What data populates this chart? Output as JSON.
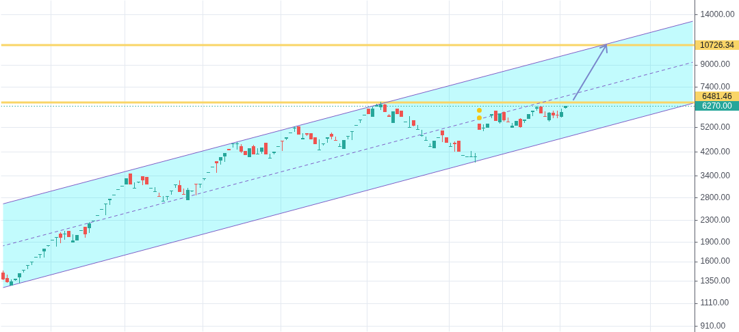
{
  "chart_data": {
    "type": "candlestick",
    "log": true,
    "grid": true,
    "tick_labels": "y",
    "marker": "none",
    "ylim": [
      866,
      15880
    ],
    "yticks": [
      {
        "value": 910,
        "label": "910.00"
      },
      {
        "value": 1110,
        "label": "1110.00"
      },
      {
        "value": 1350,
        "label": "1350.00"
      },
      {
        "value": 1600,
        "label": "1600.00"
      },
      {
        "value": 1900,
        "label": "1900.00"
      },
      {
        "value": 2300,
        "label": "2300.00"
      },
      {
        "value": 2800,
        "label": "2800.00"
      },
      {
        "value": 3400,
        "label": "3400.00"
      },
      {
        "value": 4200,
        "label": "4200.00"
      },
      {
        "value": 5200,
        "label": "5200.00"
      },
      {
        "value": 7400,
        "label": "7400.00"
      },
      {
        "value": 9000,
        "label": "9000.00"
      },
      {
        "value": 14000,
        "label": "14000.00"
      }
    ],
    "categories": [
      null,
      null,
      null,
      null,
      null,
      null,
      null,
      null,
      null,
      null,
      null,
      null,
      null,
      null,
      null,
      null,
      null,
      null,
      null,
      null,
      null,
      null,
      null,
      null,
      null,
      null,
      null,
      null,
      null,
      null,
      null,
      null,
      null,
      null,
      null,
      null,
      null,
      null,
      null,
      null,
      null,
      null,
      null,
      null,
      null,
      null,
      null,
      null,
      null,
      null,
      null,
      null,
      null,
      null,
      null,
      null,
      null,
      null,
      null,
      null,
      null,
      null,
      null,
      null,
      null,
      null,
      null,
      null,
      null,
      null,
      null,
      null,
      null,
      null,
      null,
      null,
      null,
      null,
      null,
      null,
      null,
      null,
      null,
      null,
      null,
      null,
      null,
      null,
      null,
      null,
      null,
      null,
      null,
      null,
      null,
      null,
      null,
      null,
      null,
      null,
      null,
      null,
      null,
      null,
      null,
      null,
      null,
      null,
      null,
      null,
      null,
      null,
      null,
      null,
      null,
      null,
      null,
      null,
      null,
      null,
      null,
      null,
      null,
      null,
      null,
      null,
      null,
      null,
      null,
      null,
      null,
      null,
      null,
      null,
      null,
      null,
      null,
      null,
      null,
      null,
      null,
      null,
      null,
      null,
      null,
      null,
      null,
      null,
      null,
      null,
      null,
      null,
      null,
      null,
      null,
      null,
      null,
      null,
      null,
      null,
      null,
      null,
      null,
      null,
      null,
      null,
      null,
      null,
      null
    ],
    "ohlc": [
      [
        1455,
        1485,
        1365,
        1370
      ],
      [
        1390,
        1430,
        1335,
        1340
      ],
      [
        1295,
        1370,
        1295,
        1345
      ],
      [
        1365,
        1380,
        1360,
        1380
      ],
      [
        1395,
        1445,
        1320,
        1445
      ],
      [
        1485,
        1490,
        1455,
        1490
      ],
      [
        1550,
        1555,
        1500,
        1555
      ],
      [
        1595,
        1605,
        1560,
        1605
      ],
      [
        1665,
        1670,
        1665,
        1670
      ],
      [
        1710,
        1715,
        1660,
        1715
      ],
      [
        1750,
        1795,
        1655,
        1795
      ],
      [
        1840,
        1850,
        1830,
        1850
      ],
      [
        1935,
        1945,
        1935,
        1945
      ],
      [
        1980,
        1990,
        1835,
        1990
      ],
      [
        2045,
        2065,
        1890,
        1980
      ],
      [
        2035,
        2095,
        1945,
        2045
      ],
      [
        2100,
        2100,
        1985,
        1985
      ],
      [
        1890,
        2035,
        1890,
        1930
      ],
      [
        1925,
        2025,
        1925,
        2025
      ],
      [
        2105,
        2110,
        2105,
        2110
      ],
      [
        2175,
        2175,
        1980,
        2040
      ],
      [
        2155,
        2265,
        2065,
        2240
      ],
      [
        2280,
        2295,
        2280,
        2290
      ],
      [
        2400,
        2405,
        2400,
        2405
      ],
      [
        2525,
        2535,
        2525,
        2535
      ],
      [
        2655,
        2665,
        2415,
        2665
      ],
      [
        2745,
        2780,
        2625,
        2780
      ],
      [
        2875,
        2885,
        2875,
        2885
      ],
      [
        3010,
        3020,
        3010,
        3020
      ],
      [
        3105,
        3115,
        3105,
        3115
      ],
      [
        3160,
        3330,
        3160,
        3330
      ],
      [
        3475,
        3475,
        3150,
        3150
      ],
      [
        3055,
        3215,
        3055,
        3060
      ],
      [
        3215,
        3240,
        3195,
        3240
      ],
      [
        3390,
        3390,
        3130,
        3265
      ],
      [
        3370,
        3370,
        3160,
        3160
      ],
      [
        3055,
        3060,
        3055,
        3060
      ],
      [
        2970,
        3080,
        2970,
        2975
      ],
      [
        2850,
        2935,
        2840,
        2840
      ],
      [
        2710,
        2845,
        2710,
        2730
      ],
      [
        2835,
        2845,
        2745,
        2845
      ],
      [
        2975,
        2985,
        2890,
        2985
      ],
      [
        3130,
        3145,
        3050,
        3145
      ],
      [
        3140,
        3270,
        2960,
        2960
      ],
      [
        2900,
        3045,
        2895,
        2895
      ],
      [
        2755,
        3060,
        2755,
        3005
      ],
      [
        2990,
        2995,
        2970,
        2995
      ],
      [
        3165,
        3165,
        2855,
        3150
      ],
      [
        3160,
        3180,
        3075,
        3180
      ],
      [
        3325,
        3335,
        3285,
        3335
      ],
      [
        3500,
        3510,
        3500,
        3510
      ],
      [
        3670,
        3680,
        3670,
        3680
      ],
      [
        3865,
        3865,
        3500,
        3805
      ],
      [
        3890,
        4010,
        3760,
        4010
      ],
      [
        4035,
        4155,
        3850,
        4155
      ],
      [
        4305,
        4305,
        4265,
        4265
      ],
      [
        4510,
        4520,
        4365,
        4520
      ],
      [
        4505,
        4565,
        4295,
        4515
      ],
      [
        4410,
        4490,
        4145,
        4205
      ],
      [
        4230,
        4230,
        4090,
        4090
      ],
      [
        4015,
        4325,
        4015,
        4325
      ],
      [
        4410,
        4455,
        4115,
        4115
      ],
      [
        4120,
        4325,
        4120,
        4125
      ],
      [
        4205,
        4360,
        4130,
        4360
      ],
      [
        4545,
        4545,
        4115,
        4115
      ],
      [
        3990,
        4130,
        3990,
        3995
      ],
      [
        4145,
        4205,
        4095,
        4205
      ],
      [
        4405,
        4415,
        4400,
        4415
      ],
      [
        4630,
        4630,
        4255,
        4615
      ],
      [
        4710,
        4765,
        4645,
        4765
      ],
      [
        4965,
        4975,
        4965,
        4975
      ],
      [
        5165,
        5240,
        5015,
        5175
      ],
      [
        5245,
        5245,
        4875,
        4875
      ],
      [
        4675,
        4940,
        4675,
        4730
      ],
      [
        4940,
        4940,
        4835,
        4890
      ],
      [
        4940,
        4940,
        4675,
        4675
      ],
      [
        4765,
        4765,
        4500,
        4500
      ],
      [
        4285,
        4685,
        4285,
        4290
      ],
      [
        4510,
        4520,
        4445,
        4520
      ],
      [
        4720,
        4765,
        4555,
        4765
      ],
      [
        4915,
        4980,
        4690,
        4810
      ],
      [
        4660,
        4795,
        4655,
        4655
      ],
      [
        4405,
        4520,
        4405,
        4410
      ],
      [
        4315,
        4655,
        4315,
        4655
      ],
      [
        4810,
        4820,
        4690,
        4820
      ],
      [
        5040,
        5050,
        4690,
        5050
      ],
      [
        5280,
        5300,
        5280,
        5300
      ],
      [
        5550,
        5560,
        5405,
        5560
      ],
      [
        5800,
        5810,
        5800,
        5810
      ],
      [
        6130,
        6130,
        5840,
        5845
      ],
      [
        5715,
        6245,
        5715,
        6120
      ],
      [
        6245,
        6380,
        6245,
        6315
      ],
      [
        6215,
        6535,
        6070,
        6380
      ],
      [
        6345,
        6365,
        5960,
        5960
      ],
      [
        5775,
        5835,
        5695,
        5695
      ],
      [
        5415,
        5995,
        5415,
        5995
      ],
      [
        6130,
        6130,
        5855,
        5855
      ],
      [
        6020,
        6020,
        5715,
        5715
      ],
      [
        5455,
        5465,
        5455,
        5465
      ],
      [
        5210,
        5740,
        5210,
        5215
      ],
      [
        5540,
        5540,
        5255,
        5290
      ],
      [
        5115,
        5300,
        5115,
        5125
      ],
      [
        4860,
        5115,
        4845,
        4865
      ],
      [
        4640,
        4795,
        4640,
        4645
      ],
      [
        4405,
        4520,
        4405,
        4410
      ],
      [
        4340,
        4625,
        4340,
        4625
      ],
      [
        4770,
        4780,
        4770,
        4780
      ],
      [
        5060,
        5060,
        4580,
        4865
      ],
      [
        4765,
        4765,
        4535,
        4535
      ],
      [
        4405,
        4555,
        4405,
        4410
      ],
      [
        4545,
        4610,
        4215,
        4490
      ],
      [
        4625,
        4625,
        4215,
        4215
      ],
      [
        4070,
        4075,
        4070,
        4075
      ],
      [
        4030,
        4035,
        4030,
        4035
      ],
      [
        4035,
        4230,
        4035,
        4040
      ],
      [
        4035,
        4170,
        3850,
        4040
      ],
      [
        5375,
        5375,
        5090,
        5090
      ],
      [
        5165,
        5320,
        5040,
        5175
      ],
      [
        5195,
        5375,
        5195,
        5375
      ],
      [
        5795,
        5855,
        5650,
        5855
      ],
      [
        6020,
        6020,
        5505,
        5505
      ],
      [
        5440,
        5880,
        5375,
        5880
      ],
      [
        5950,
        5975,
        5480,
        5540
      ],
      [
        5465,
        5650,
        5455,
        5455
      ],
      [
        5195,
        5405,
        5195,
        5280
      ],
      [
        5280,
        5515,
        5280,
        5515
      ],
      [
        5615,
        5650,
        5195,
        5215
      ],
      [
        5495,
        5570,
        5385,
        5570
      ],
      [
        5615,
        5845,
        5615,
        5845
      ],
      [
        5940,
        6010,
        5740,
        6010
      ],
      [
        6155,
        6255,
        6035,
        6195
      ],
      [
        6255,
        6255,
        5890,
        5890
      ],
      [
        5730,
        5960,
        5695,
        5695
      ],
      [
        5540,
        5975,
        5480,
        5925
      ],
      [
        5915,
        6020,
        5650,
        5795
      ],
      [
        5810,
        6020,
        5650,
        5790
      ],
      [
        5705,
        6130,
        5685,
        5950
      ],
      [
        6180,
        6280,
        6145,
        6270
      ],
      null,
      null,
      null,
      null,
      null,
      null,
      null,
      null,
      null,
      null,
      null,
      null,
      null,
      null,
      null,
      null,
      null,
      null,
      null,
      null,
      null,
      null,
      null,
      null,
      null,
      null,
      null,
      null,
      null,
      null,
      null
    ],
    "colors": [
      "#ef5350",
      "#ef5350",
      "#26a69a",
      "#26a69a",
      "#26a69a",
      "#26a69a",
      "#26a69a",
      "#26a69a",
      "#26a69a",
      "#26a69a",
      "#26a69a",
      "#26a69a",
      "#26a69a",
      "#26a69a",
      "#ef5350",
      "#26a69a",
      "#ef5350",
      "#26a69a",
      "#26a69a",
      "#26a69a",
      "#ef5350",
      "#26a69a",
      "#26a69a",
      "#26a69a",
      "#26a69a",
      "#26a69a",
      "#26a69a",
      "#26a69a",
      "#26a69a",
      "#26a69a",
      "#26a69a",
      "#ef5350",
      "#26a69a",
      "#26a69a",
      "#ef5350",
      "#ef5350",
      "#26a69a",
      "#26a69a",
      "#ef5350",
      "#26a69a",
      "#26a69a",
      "#26a69a",
      "#26a69a",
      "#ef5350",
      "#ef5350",
      "#26a69a",
      "#26a69a",
      "#ef5350",
      "#26a69a",
      "#26a69a",
      "#26a69a",
      "#26a69a",
      "#ef5350",
      "#26a69a",
      "#26a69a",
      "#ef5350",
      "#26a69a",
      "#26a69a",
      "#ef5350",
      "#ef5350",
      "#26a69a",
      "#ef5350",
      "#26a69a",
      "#26a69a",
      "#ef5350",
      "#26a69a",
      "#26a69a",
      "#26a69a",
      "#ef5350",
      "#26a69a",
      "#26a69a",
      "#26a69a",
      "#ef5350",
      "#26a69a",
      "#ef5350",
      "#ef5350",
      "#ef5350",
      "#26a69a",
      "#26a69a",
      "#26a69a",
      "#ef5350",
      "#ef5350",
      "#26a69a",
      "#26a69a",
      "#26a69a",
      "#26a69a",
      "#26a69a",
      "#26a69a",
      "#26a69a",
      "#ef5350",
      "#26a69a",
      "#26a69a",
      "#26a69a",
      "#ef5350",
      "#ef5350",
      "#26a69a",
      "#ef5350",
      "#ef5350",
      "#26a69a",
      "#26a69a",
      "#ef5350",
      "#26a69a",
      "#26a69a",
      "#26a69a",
      "#26a69a",
      "#26a69a",
      "#26a69a",
      "#ef5350",
      "#ef5350",
      "#26a69a",
      "#ef5350",
      "#ef5350",
      "#26a69a",
      "#26a69a",
      "#26a69a",
      "#26a69a",
      "#ef5350",
      "#26a69a",
      "#26a69a",
      "#26a69a",
      "#ef5350",
      "#26a69a",
      "#ef5350",
      "#ef5350",
      "#26a69a",
      "#26a69a",
      "#ef5350",
      "#26a69a",
      "#26a69a",
      "#26a69a",
      "#26a69a",
      "#ef5350",
      "#ef5350",
      "#26a69a",
      "#ef5350",
      "#ef5350",
      "#26a69a",
      "#26a69a",
      null,
      null,
      null,
      null,
      null,
      null,
      null,
      null,
      null,
      null,
      null,
      null,
      null,
      null,
      null,
      null,
      null,
      null,
      null,
      null,
      null,
      null,
      null,
      null,
      null,
      null,
      null,
      null,
      null,
      null,
      null
    ],
    "series": [
      {
        "type": "line",
        "color": "#7e5ec6",
        "values": [
          2660,
          null,
          null,
          null,
          null,
          null,
          null,
          null,
          null,
          null,
          null,
          null,
          null,
          null,
          null,
          null,
          null,
          null,
          null,
          null,
          null,
          null,
          null,
          null,
          null,
          null,
          null,
          null,
          null,
          null,
          null,
          null,
          null,
          null,
          null,
          null,
          null,
          null,
          null,
          null,
          null,
          null,
          null,
          null,
          null,
          null,
          null,
          null,
          null,
          null,
          null,
          null,
          null,
          null,
          null,
          null,
          null,
          null,
          null,
          null,
          null,
          null,
          null,
          null,
          null,
          null,
          null,
          null,
          null,
          null,
          null,
          null,
          null,
          null,
          null,
          null,
          null,
          null,
          null,
          null,
          null,
          null,
          null,
          null,
          null,
          null,
          null,
          null,
          null,
          null,
          null,
          null,
          null,
          null,
          null,
          null,
          null,
          null,
          null,
          null,
          null,
          null,
          null,
          null,
          null,
          null,
          null,
          null,
          null,
          null,
          null,
          null,
          null,
          null,
          null,
          null,
          null,
          null,
          null,
          null,
          null,
          null,
          null,
          null,
          null,
          null,
          null,
          null,
          null,
          null,
          null,
          null,
          null,
          null,
          null,
          null,
          null,
          null,
          null,
          null,
          null,
          null,
          null,
          null,
          null,
          null,
          null,
          null,
          null,
          null,
          null,
          null,
          null,
          null,
          null,
          null,
          null,
          null,
          null,
          null,
          null,
          null,
          null,
          null,
          null,
          null,
          null,
          null,
          13220
        ]
      },
      {
        "type": "line",
        "color": "#7e5ec6",
        "line_style": "dashed",
        "values": [
          1840,
          null,
          null,
          null,
          null,
          null,
          null,
          null,
          null,
          null,
          null,
          null,
          null,
          null,
          null,
          null,
          null,
          null,
          null,
          null,
          null,
          null,
          null,
          null,
          null,
          null,
          null,
          null,
          null,
          null,
          null,
          null,
          null,
          null,
          null,
          null,
          null,
          null,
          null,
          null,
          null,
          null,
          null,
          null,
          null,
          null,
          null,
          null,
          null,
          null,
          null,
          null,
          null,
          null,
          null,
          null,
          null,
          null,
          null,
          null,
          null,
          null,
          null,
          null,
          null,
          null,
          null,
          null,
          null,
          null,
          null,
          null,
          null,
          null,
          null,
          null,
          null,
          null,
          null,
          null,
          null,
          null,
          null,
          null,
          null,
          null,
          null,
          null,
          null,
          null,
          null,
          null,
          null,
          null,
          null,
          null,
          null,
          null,
          null,
          null,
          null,
          null,
          null,
          null,
          null,
          null,
          null,
          null,
          null,
          null,
          null,
          null,
          null,
          null,
          null,
          null,
          null,
          null,
          null,
          null,
          null,
          null,
          null,
          null,
          null,
          null,
          null,
          null,
          null,
          null,
          null,
          null,
          null,
          null,
          null,
          null,
          null,
          null,
          null,
          null,
          null,
          null,
          null,
          null,
          null,
          null,
          null,
          null,
          null,
          null,
          null,
          null,
          null,
          null,
          null,
          null,
          null,
          null,
          null,
          null,
          null,
          null,
          null,
          null,
          null,
          null,
          null,
          null,
          9220
        ],
        "lower": [
          1275,
          null,
          null,
          null,
          null,
          null,
          null,
          null,
          null,
          null,
          null,
          null,
          null,
          null,
          null,
          null,
          null,
          null,
          null,
          null,
          null,
          null,
          null,
          null,
          null,
          null,
          null,
          null,
          null,
          null,
          null,
          null,
          null,
          null,
          null,
          null,
          null,
          null,
          null,
          null,
          null,
          null,
          null,
          null,
          null,
          null,
          null,
          null,
          null,
          null,
          null,
          null,
          null,
          null,
          null,
          null,
          null,
          null,
          null,
          null,
          null,
          null,
          null,
          null,
          null,
          null,
          null,
          null,
          null,
          null,
          null,
          null,
          null,
          null,
          null,
          null,
          null,
          null,
          null,
          null,
          null,
          null,
          null,
          null,
          null,
          null,
          null,
          null,
          null,
          null,
          null,
          null,
          null,
          null,
          null,
          null,
          null,
          null,
          null,
          null,
          null,
          null,
          null,
          null,
          null,
          null,
          null,
          null,
          null,
          null,
          null,
          null,
          null,
          null,
          null,
          null,
          null,
          null,
          null,
          null,
          null,
          null,
          null,
          null,
          null,
          null,
          null,
          null,
          null,
          null,
          null,
          null,
          null,
          null,
          null,
          null,
          null,
          null,
          null,
          null,
          null,
          null,
          null,
          null,
          null,
          null,
          null,
          null,
          null,
          null,
          null,
          null,
          null,
          null,
          null,
          null,
          null,
          null,
          null,
          null,
          null,
          null,
          null,
          null,
          null,
          null,
          null,
          null,
          6430
        ],
        "upper": [
          2660,
          null,
          null,
          null,
          null,
          null,
          null,
          null,
          null,
          null,
          null,
          null,
          null,
          null,
          null,
          null,
          null,
          null,
          null,
          null,
          null,
          null,
          null,
          null,
          null,
          null,
          null,
          null,
          null,
          null,
          null,
          null,
          null,
          null,
          null,
          null,
          null,
          null,
          null,
          null,
          null,
          null,
          null,
          null,
          null,
          null,
          null,
          null,
          null,
          null,
          null,
          null,
          null,
          null,
          null,
          null,
          null,
          null,
          null,
          null,
          null,
          null,
          null,
          null,
          null,
          null,
          null,
          null,
          null,
          null,
          null,
          null,
          null,
          null,
          null,
          null,
          null,
          null,
          null,
          null,
          null,
          null,
          null,
          null,
          null,
          null,
          null,
          null,
          null,
          null,
          null,
          null,
          null,
          null,
          null,
          null,
          null,
          null,
          null,
          null,
          null,
          null,
          null,
          null,
          null,
          null,
          null,
          null,
          null,
          null,
          null,
          null,
          null,
          null,
          null,
          null,
          null,
          null,
          null,
          null,
          null,
          null,
          null,
          null,
          null,
          null,
          null,
          null,
          null,
          null,
          null,
          null,
          null,
          null,
          null,
          null,
          null,
          null,
          null,
          null,
          null,
          null,
          null,
          null,
          null,
          null,
          null,
          null,
          null,
          null,
          null,
          null,
          null,
          null,
          null,
          null,
          null,
          null,
          null,
          null,
          null,
          null,
          null,
          null,
          null,
          null,
          null,
          null,
          13220
        ]
      },
      {
        "type": "line",
        "color": "#7e5ec6",
        "values": [
          1275,
          null,
          null,
          null,
          null,
          null,
          null,
          null,
          null,
          null,
          null,
          null,
          null,
          null,
          null,
          null,
          null,
          null,
          null,
          null,
          null,
          null,
          null,
          null,
          null,
          null,
          null,
          null,
          null,
          null,
          null,
          null,
          null,
          null,
          null,
          null,
          null,
          null,
          null,
          null,
          null,
          null,
          null,
          null,
          null,
          null,
          null,
          null,
          null,
          null,
          null,
          null,
          null,
          null,
          null,
          null,
          null,
          null,
          null,
          null,
          null,
          null,
          null,
          null,
          null,
          null,
          null,
          null,
          null,
          null,
          null,
          null,
          null,
          null,
          null,
          null,
          null,
          null,
          null,
          null,
          null,
          null,
          null,
          null,
          null,
          null,
          null,
          null,
          null,
          null,
          null,
          null,
          null,
          null,
          null,
          null,
          null,
          null,
          null,
          null,
          null,
          null,
          null,
          null,
          null,
          null,
          null,
          null,
          null,
          null,
          null,
          null,
          null,
          null,
          null,
          null,
          null,
          null,
          null,
          null,
          null,
          null,
          null,
          null,
          null,
          null,
          null,
          null,
          null,
          null,
          null,
          null,
          null,
          null,
          null,
          null,
          null,
          null,
          null,
          null,
          null,
          null,
          null,
          null,
          null,
          null,
          null,
          null,
          null,
          null,
          null,
          null,
          null,
          null,
          null,
          null,
          null,
          null,
          null,
          null,
          null,
          null,
          null,
          null,
          null,
          null,
          null,
          null,
          6430
        ]
      }
    ],
    "ref_lines": [
      {
        "axis": "y",
        "value": 10726.34,
        "label": "10726.34",
        "color": "#f9d567"
      },
      {
        "axis": "y",
        "value": 6481.46,
        "label": "6481.46",
        "color": "#f9d567"
      },
      {
        "axis": "y",
        "value": 6270,
        "label": "6270.00",
        "color": "#26a69a",
        "line_style": "dotted"
      }
    ]
  }
}
